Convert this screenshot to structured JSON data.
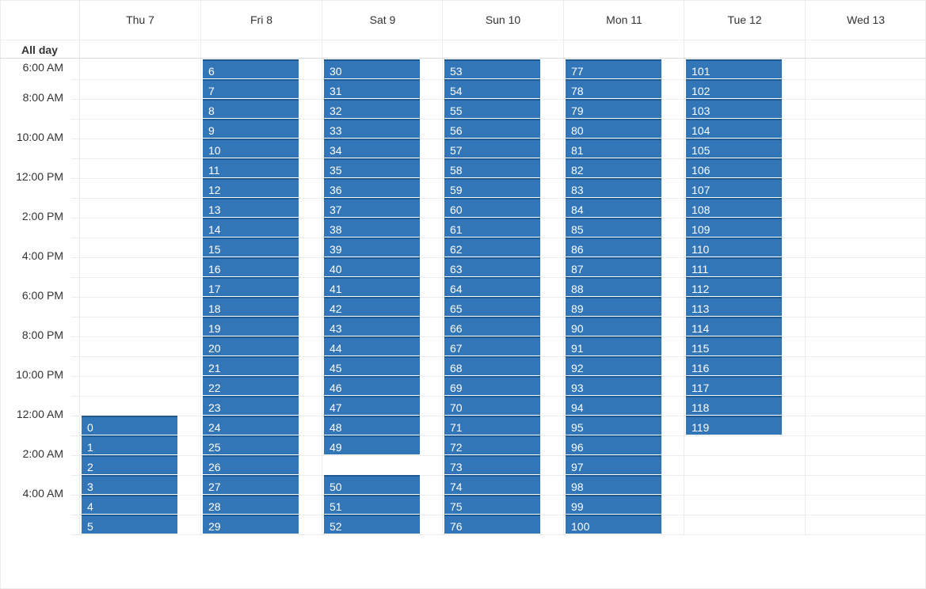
{
  "all_day_label": "All day",
  "days": [
    {
      "label": "Thu 7",
      "events": [
        {
          "n": "0",
          "slot": 18
        },
        {
          "n": "1",
          "slot": 19
        },
        {
          "n": "2",
          "slot": 20
        },
        {
          "n": "3",
          "slot": 21
        },
        {
          "n": "4",
          "slot": 22
        },
        {
          "n": "5",
          "slot": 23
        }
      ]
    },
    {
      "label": "Fri 8",
      "events": [
        {
          "n": "6",
          "slot": 0
        },
        {
          "n": "7",
          "slot": 1
        },
        {
          "n": "8",
          "slot": 2
        },
        {
          "n": "9",
          "slot": 3
        },
        {
          "n": "10",
          "slot": 4
        },
        {
          "n": "11",
          "slot": 5
        },
        {
          "n": "12",
          "slot": 6
        },
        {
          "n": "13",
          "slot": 7
        },
        {
          "n": "14",
          "slot": 8
        },
        {
          "n": "15",
          "slot": 9
        },
        {
          "n": "16",
          "slot": 10
        },
        {
          "n": "17",
          "slot": 11
        },
        {
          "n": "18",
          "slot": 12
        },
        {
          "n": "19",
          "slot": 13
        },
        {
          "n": "20",
          "slot": 14
        },
        {
          "n": "21",
          "slot": 15
        },
        {
          "n": "22",
          "slot": 16
        },
        {
          "n": "23",
          "slot": 17
        },
        {
          "n": "24",
          "slot": 18
        },
        {
          "n": "25",
          "slot": 19
        },
        {
          "n": "26",
          "slot": 20
        },
        {
          "n": "27",
          "slot": 21
        },
        {
          "n": "28",
          "slot": 22
        },
        {
          "n": "29",
          "slot": 23
        }
      ]
    },
    {
      "label": "Sat 9",
      "events": [
        {
          "n": "30",
          "slot": 0
        },
        {
          "n": "31",
          "slot": 1
        },
        {
          "n": "32",
          "slot": 2
        },
        {
          "n": "33",
          "slot": 3
        },
        {
          "n": "34",
          "slot": 4
        },
        {
          "n": "35",
          "slot": 5
        },
        {
          "n": "36",
          "slot": 6
        },
        {
          "n": "37",
          "slot": 7
        },
        {
          "n": "38",
          "slot": 8
        },
        {
          "n": "39",
          "slot": 9
        },
        {
          "n": "40",
          "slot": 10
        },
        {
          "n": "41",
          "slot": 11
        },
        {
          "n": "42",
          "slot": 12
        },
        {
          "n": "43",
          "slot": 13
        },
        {
          "n": "44",
          "slot": 14
        },
        {
          "n": "45",
          "slot": 15
        },
        {
          "n": "46",
          "slot": 16
        },
        {
          "n": "47",
          "slot": 17
        },
        {
          "n": "48",
          "slot": 18
        },
        {
          "n": "49",
          "slot": 19
        },
        {
          "n": "50",
          "slot": 21
        },
        {
          "n": "51",
          "slot": 22
        },
        {
          "n": "52",
          "slot": 23
        }
      ]
    },
    {
      "label": "Sun 10",
      "events": [
        {
          "n": "53",
          "slot": 0
        },
        {
          "n": "54",
          "slot": 1
        },
        {
          "n": "55",
          "slot": 2
        },
        {
          "n": "56",
          "slot": 3
        },
        {
          "n": "57",
          "slot": 4
        },
        {
          "n": "58",
          "slot": 5
        },
        {
          "n": "59",
          "slot": 6
        },
        {
          "n": "60",
          "slot": 7
        },
        {
          "n": "61",
          "slot": 8
        },
        {
          "n": "62",
          "slot": 9
        },
        {
          "n": "63",
          "slot": 10
        },
        {
          "n": "64",
          "slot": 11
        },
        {
          "n": "65",
          "slot": 12
        },
        {
          "n": "66",
          "slot": 13
        },
        {
          "n": "67",
          "slot": 14
        },
        {
          "n": "68",
          "slot": 15
        },
        {
          "n": "69",
          "slot": 16
        },
        {
          "n": "70",
          "slot": 17
        },
        {
          "n": "71",
          "slot": 18
        },
        {
          "n": "72",
          "slot": 19
        },
        {
          "n": "73",
          "slot": 20
        },
        {
          "n": "74",
          "slot": 21
        },
        {
          "n": "75",
          "slot": 22
        },
        {
          "n": "76",
          "slot": 23
        }
      ]
    },
    {
      "label": "Mon 11",
      "events": [
        {
          "n": "77",
          "slot": 0
        },
        {
          "n": "78",
          "slot": 1
        },
        {
          "n": "79",
          "slot": 2
        },
        {
          "n": "80",
          "slot": 3
        },
        {
          "n": "81",
          "slot": 4
        },
        {
          "n": "82",
          "slot": 5
        },
        {
          "n": "83",
          "slot": 6
        },
        {
          "n": "84",
          "slot": 7
        },
        {
          "n": "85",
          "slot": 8
        },
        {
          "n": "86",
          "slot": 9
        },
        {
          "n": "87",
          "slot": 10
        },
        {
          "n": "88",
          "slot": 11
        },
        {
          "n": "89",
          "slot": 12
        },
        {
          "n": "90",
          "slot": 13
        },
        {
          "n": "91",
          "slot": 14
        },
        {
          "n": "92",
          "slot": 15
        },
        {
          "n": "93",
          "slot": 16
        },
        {
          "n": "94",
          "slot": 17
        },
        {
          "n": "95",
          "slot": 18
        },
        {
          "n": "96",
          "slot": 19
        },
        {
          "n": "97",
          "slot": 20
        },
        {
          "n": "98",
          "slot": 21
        },
        {
          "n": "99",
          "slot": 22
        },
        {
          "n": "100",
          "slot": 23
        }
      ]
    },
    {
      "label": "Tue 12",
      "events": [
        {
          "n": "101",
          "slot": 0
        },
        {
          "n": "102",
          "slot": 1
        },
        {
          "n": "103",
          "slot": 2
        },
        {
          "n": "104",
          "slot": 3
        },
        {
          "n": "105",
          "slot": 4
        },
        {
          "n": "106",
          "slot": 5
        },
        {
          "n": "107",
          "slot": 6
        },
        {
          "n": "108",
          "slot": 7
        },
        {
          "n": "109",
          "slot": 8
        },
        {
          "n": "110",
          "slot": 9
        },
        {
          "n": "111",
          "slot": 10
        },
        {
          "n": "112",
          "slot": 11
        },
        {
          "n": "113",
          "slot": 12
        },
        {
          "n": "114",
          "slot": 13
        },
        {
          "n": "115",
          "slot": 14
        },
        {
          "n": "116",
          "slot": 15
        },
        {
          "n": "117",
          "slot": 16
        },
        {
          "n": "118",
          "slot": 17
        },
        {
          "n": "119",
          "slot": 18
        }
      ]
    },
    {
      "label": "Wed 13",
      "events": []
    }
  ],
  "time_labels": [
    "6:00 AM",
    "8:00 AM",
    "10:00 AM",
    "12:00 PM",
    "2:00 PM",
    "4:00 PM",
    "6:00 PM",
    "8:00 PM",
    "10:00 PM",
    "12:00 AM",
    "2:00 AM",
    "4:00 AM"
  ],
  "colors": {
    "event_bg": "#3276b7",
    "event_border": "#1f5a91",
    "grid_line": "#ececec"
  }
}
